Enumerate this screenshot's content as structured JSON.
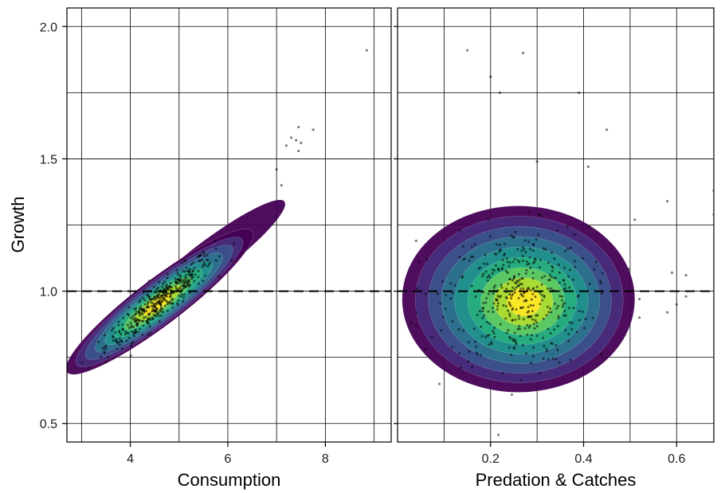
{
  "chart_data": {
    "type": "scatter",
    "description_layers": [
      "density-contour",
      "scatter",
      "reference-line"
    ],
    "ylabel": "Growth",
    "ylim": [
      0.43,
      2.07
    ],
    "y_ticks": [
      0.5,
      1.0,
      1.5,
      2.0
    ],
    "y_tick_labels": [
      "0.5",
      "1.0",
      "1.5",
      "2.0"
    ],
    "y_minor_grid": [
      0.75,
      1.25,
      1.75
    ],
    "reference_line": {
      "y": 1.0,
      "style": "dashed"
    },
    "grid": true,
    "contour_palette": [
      "#440154",
      "#472d7b",
      "#3b528b",
      "#2c728e",
      "#21918c",
      "#28ae80",
      "#5ec962",
      "#addc30",
      "#fde725"
    ],
    "point_color": "#000000",
    "panels": [
      {
        "id": "consumption",
        "xlabel": "Consumption",
        "xlim": [
          2.7,
          9.35
        ],
        "x_ticks": [
          4,
          6,
          8
        ],
        "x_tick_labels": [
          "4",
          "6",
          "8"
        ],
        "x_minor_grid": [
          3,
          5,
          7,
          9
        ],
        "density_axis": {
          "center": [
            4.6,
            0.96
          ],
          "direction": [
            1.0,
            0.14
          ],
          "sd_major": 0.85,
          "sd_minor": 0.16,
          "label": "ridge"
        },
        "outliers": [
          [
            8.85,
            1.91
          ],
          [
            7.45,
            1.62
          ],
          [
            7.75,
            1.61
          ],
          [
            7.3,
            1.58
          ],
          [
            7.4,
            1.57
          ],
          [
            7.2,
            1.55
          ],
          [
            7.5,
            1.56
          ],
          [
            7.45,
            1.53
          ],
          [
            7.0,
            1.46
          ],
          [
            7.1,
            1.4
          ]
        ],
        "point_count": 420
      },
      {
        "id": "predation",
        "xlabel": "Predation & Catches",
        "xlim": [
          0.0,
          0.68
        ],
        "x_ticks": [
          0.2,
          0.4,
          0.6
        ],
        "x_tick_labels": [
          "0.2",
          "0.4",
          "0.6"
        ],
        "x_minor_grid": [
          0.1,
          0.3,
          0.5
        ],
        "density_axis": {
          "center": [
            0.26,
            0.97
          ],
          "sd_x": 0.085,
          "sd_y": 0.14
        },
        "outliers": [
          [
            0.15,
            1.91
          ],
          [
            0.27,
            1.9
          ],
          [
            0.2,
            1.81
          ],
          [
            0.22,
            1.75
          ],
          [
            0.39,
            1.75
          ],
          [
            0.45,
            1.61
          ],
          [
            0.41,
            1.47
          ],
          [
            0.3,
            1.49
          ],
          [
            0.58,
            1.34
          ],
          [
            0.68,
            1.38
          ],
          [
            0.68,
            1.29
          ],
          [
            0.51,
            1.27
          ],
          [
            0.04,
            1.19
          ],
          [
            0.06,
            0.99
          ],
          [
            0.04,
            0.92
          ],
          [
            0.03,
            0.88
          ],
          [
            0.04,
            0.87
          ],
          [
            0.06,
            0.78
          ],
          [
            0.52,
            0.97
          ],
          [
            0.52,
            0.9
          ],
          [
            0.58,
            0.92
          ],
          [
            0.59,
            1.07
          ],
          [
            0.62,
            1.06
          ],
          [
            0.62,
            0.98
          ],
          [
            0.6,
            0.95
          ]
        ],
        "point_count": 420
      }
    ]
  }
}
